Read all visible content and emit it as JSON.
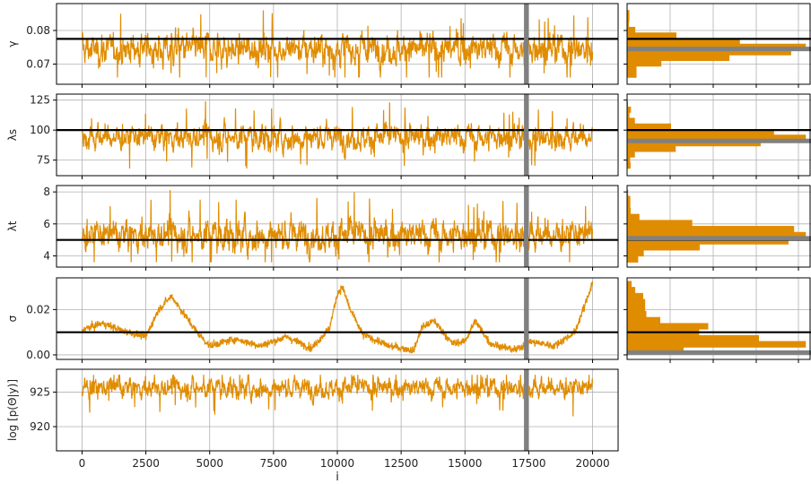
{
  "xlabel": "i",
  "x_ticks": [
    "0",
    "2500",
    "5000",
    "7500",
    "10000",
    "12500",
    "15000",
    "17500",
    "20000"
  ],
  "colors": {
    "trace": "#e08c00",
    "hist": "#e08c00",
    "reference": "#000000",
    "marker": "#808080",
    "grid": "#b0b0b0"
  },
  "chart_data": [
    {
      "type": "line",
      "ylabel": "γ",
      "ylim": [
        0.064,
        0.088
      ],
      "yticks": [
        0.07,
        0.08
      ],
      "ytick_labels": [
        "0.07",
        "0.08"
      ],
      "reference_line": 0.0775,
      "marker_x": 17400,
      "trace": {
        "x_range": [
          0,
          20000
        ],
        "mean": 0.0745,
        "spread": 0.0028,
        "min": 0.066,
        "max": 0.086
      },
      "hist": {
        "reference": 0.0775,
        "marker": 0.0745
      }
    },
    {
      "type": "line",
      "ylabel": "λs",
      "ylim": [
        62,
        130
      ],
      "yticks": [
        75,
        100,
        125
      ],
      "ytick_labels": [
        "75",
        "100",
        "125"
      ],
      "reference_line": 100,
      "marker_x": 17400,
      "trace": {
        "x_range": [
          0,
          20000
        ],
        "mean": 94,
        "spread": 6.5,
        "min": 68,
        "max": 124
      },
      "hist": {
        "reference": 100,
        "marker": 91
      }
    },
    {
      "type": "line",
      "ylabel": "λt",
      "ylim": [
        3.3,
        8.4
      ],
      "yticks": [
        4,
        6,
        8
      ],
      "ytick_labels": [
        "4",
        "6",
        "8"
      ],
      "reference_line": 5.0,
      "marker_x": 17400,
      "trace": {
        "x_range": [
          0,
          20000
        ],
        "mean": 5.3,
        "spread": 0.6,
        "min": 3.6,
        "max": 8.2
      },
      "hist": {
        "reference": 5.0,
        "marker": 5.1
      }
    },
    {
      "type": "line",
      "ylabel": "σ",
      "ylim": [
        -0.002,
        0.034
      ],
      "yticks": [
        0.0,
        0.02
      ],
      "ytick_labels": [
        "0.00",
        "0.02"
      ],
      "reference_line": 0.01,
      "marker_x": 17400,
      "trace": {
        "x_range": [
          0,
          20000
        ],
        "mean": 0.008,
        "min": 0.0,
        "max": 0.033,
        "path": [
          [
            0,
            0.011
          ],
          [
            800,
            0.014
          ],
          [
            1500,
            0.011
          ],
          [
            2500,
            0.008
          ],
          [
            3000,
            0.02
          ],
          [
            3500,
            0.026
          ],
          [
            4000,
            0.018
          ],
          [
            4500,
            0.01
          ],
          [
            5000,
            0.004
          ],
          [
            6000,
            0.007
          ],
          [
            7000,
            0.004
          ],
          [
            8000,
            0.008
          ],
          [
            9000,
            0.003
          ],
          [
            9700,
            0.012
          ],
          [
            10000,
            0.027
          ],
          [
            10200,
            0.03
          ],
          [
            10500,
            0.02
          ],
          [
            11000,
            0.009
          ],
          [
            12000,
            0.004
          ],
          [
            13000,
            0.002
          ],
          [
            13300,
            0.012
          ],
          [
            13800,
            0.015
          ],
          [
            14500,
            0.005
          ],
          [
            15000,
            0.006
          ],
          [
            15400,
            0.015
          ],
          [
            16000,
            0.005
          ],
          [
            17000,
            0.002
          ],
          [
            17500,
            0.006
          ],
          [
            18500,
            0.004
          ],
          [
            19300,
            0.01
          ],
          [
            19700,
            0.022
          ],
          [
            20000,
            0.032
          ]
        ]
      },
      "hist": {
        "reference": 0.01,
        "marker": 0.001
      }
    },
    {
      "type": "line",
      "ylabel": "log [p(Θ|y)]",
      "ylim": [
        916.5,
        928.3
      ],
      "yticks": [
        920,
        925
      ],
      "ytick_labels": [
        "920",
        "925"
      ],
      "reference_line": null,
      "marker_x": 17400,
      "trace": {
        "x_range": [
          0,
          20000
        ],
        "mean": 925.6,
        "spread": 0.9,
        "min": 917.3,
        "max": 927.5
      }
    }
  ]
}
